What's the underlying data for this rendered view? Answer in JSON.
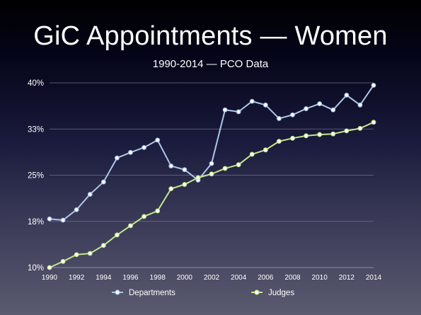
{
  "chart_data": {
    "type": "line",
    "title": "GiC Appointments — Women",
    "subtitle": "1990-2014 — PCO Data",
    "xlabel": "",
    "ylabel": "",
    "x": [
      1990,
      1991,
      1992,
      1993,
      1994,
      1995,
      1996,
      1997,
      1998,
      1999,
      2000,
      2001,
      2002,
      2003,
      2004,
      2005,
      2006,
      2007,
      2008,
      2009,
      2010,
      2011,
      2012,
      2013,
      2014
    ],
    "x_ticks": [
      "1990",
      "1992",
      "1994",
      "1996",
      "1998",
      "2000",
      "2002",
      "2004",
      "2006",
      "2008",
      "2010",
      "2012",
      "2014"
    ],
    "y_ticks": [
      "10%",
      "18%",
      "25%",
      "33%",
      "40%"
    ],
    "ylim": [
      10,
      40
    ],
    "grid": true,
    "legend_position": "bottom",
    "series": [
      {
        "name": "Departments",
        "color": "#aec7e8",
        "values": [
          17.9,
          17.7,
          19.4,
          21.9,
          23.9,
          27.8,
          28.7,
          29.5,
          30.7,
          26.5,
          25.9,
          24.2,
          26.9,
          35.6,
          35.3,
          37.0,
          36.4,
          34.2,
          34.8,
          35.8,
          36.6,
          35.6,
          38.0,
          36.4,
          39.6
        ]
      },
      {
        "name": "Judges",
        "color": "#c5e88a",
        "values": [
          10.0,
          11.0,
          12.1,
          12.3,
          13.6,
          15.3,
          16.8,
          18.3,
          19.2,
          22.8,
          23.5,
          24.6,
          25.2,
          26.1,
          26.7,
          28.4,
          29.1,
          30.5,
          31.0,
          31.4,
          31.6,
          31.7,
          32.2,
          32.6,
          33.6
        ]
      }
    ]
  }
}
